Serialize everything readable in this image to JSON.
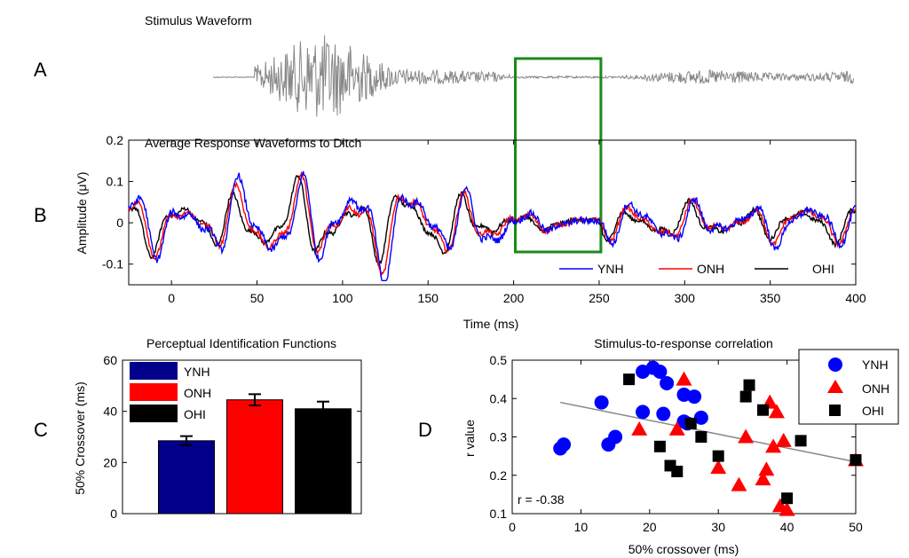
{
  "panels": {
    "A": "A",
    "B": "B",
    "C": "C",
    "D": "D"
  },
  "chart_data": [
    {
      "panel": "A",
      "type": "line",
      "title": "Stimulus Waveform",
      "description_color": "#888888",
      "highlight_box_ms": [
        201,
        251
      ],
      "highlight_color": "#1a8a1a"
    },
    {
      "panel": "B",
      "type": "line",
      "title": "Average Response Waveforms to Ditch",
      "xlabel": "Time (ms)",
      "ylabel": "Amplitude (μV)",
      "xlim": [
        -25,
        400
      ],
      "ylim": [
        -0.15,
        0.2
      ],
      "xticks": [
        0,
        50,
        100,
        150,
        200,
        250,
        300,
        350,
        400
      ],
      "yticks": [
        -0.1,
        0,
        0.1,
        0.2
      ],
      "ytick_labels": [
        "-0.1",
        "0",
        "0.1",
        "0.2"
      ],
      "legend": "bottom-right",
      "series": [
        {
          "name": "YNH",
          "color": "#0000ff"
        },
        {
          "name": "ONH",
          "color": "#ff0000"
        },
        {
          "name": "OHI",
          "color": "#000000"
        }
      ]
    },
    {
      "panel": "C",
      "type": "bar",
      "title": "Perceptual Identification Functions",
      "ylabel": "50% Crossover (ms)",
      "ylim": [
        0,
        60
      ],
      "yticks": [
        0,
        20,
        40,
        60
      ],
      "categories": [
        "YNH",
        "ONH",
        "OHI"
      ],
      "values": [
        28.5,
        44.5,
        41
      ],
      "errors": [
        1.8,
        2.2,
        2.8
      ],
      "colors": [
        "#00008b",
        "#ff0000",
        "#000000"
      ],
      "legend": "top-left"
    },
    {
      "panel": "D",
      "type": "scatter",
      "title": "Stimulus-to-response correlation",
      "xlabel": "50% crossover  (ms)",
      "ylabel": "r value",
      "xlim": [
        0,
        50
      ],
      "ylim": [
        0.1,
        0.5
      ],
      "xticks": [
        0,
        10,
        20,
        30,
        40,
        50
      ],
      "yticks": [
        0.1,
        0.2,
        0.3,
        0.4,
        0.5
      ],
      "annotation": "r = -0.38",
      "legend": "top-right",
      "trendline": {
        "x": [
          7,
          50
        ],
        "y": [
          0.39,
          0.235
        ]
      },
      "series": [
        {
          "name": "YNH",
          "marker": "circle",
          "color": "#0000ff",
          "x": [
            7,
            7.5,
            13,
            14,
            15,
            19,
            20.5,
            21.5,
            22.5,
            19,
            22,
            25,
            25.5,
            26.5,
            27.5,
            25
          ],
          "y": [
            0.27,
            0.28,
            0.39,
            0.28,
            0.3,
            0.47,
            0.48,
            0.47,
            0.44,
            0.365,
            0.36,
            0.41,
            0.335,
            0.405,
            0.35,
            0.34
          ]
        },
        {
          "name": "ONH",
          "marker": "triangle",
          "color": "#ff0000",
          "x": [
            18.5,
            24,
            25,
            30,
            33,
            34,
            36.5,
            37,
            37.5,
            38,
            38.5,
            39,
            39.5,
            40,
            50
          ],
          "y": [
            0.32,
            0.32,
            0.45,
            0.22,
            0.175,
            0.3,
            0.19,
            0.215,
            0.39,
            0.275,
            0.365,
            0.12,
            0.29,
            0.11,
            0.24
          ]
        },
        {
          "name": "OHI",
          "marker": "square",
          "color": "#000000",
          "x": [
            17,
            21.5,
            23,
            24,
            26,
            27.5,
            30,
            34,
            34.5,
            36.5,
            40,
            42,
            50
          ],
          "y": [
            0.45,
            0.275,
            0.225,
            0.21,
            0.335,
            0.3,
            0.25,
            0.405,
            0.435,
            0.37,
            0.14,
            0.29,
            0.24
          ]
        }
      ]
    }
  ]
}
